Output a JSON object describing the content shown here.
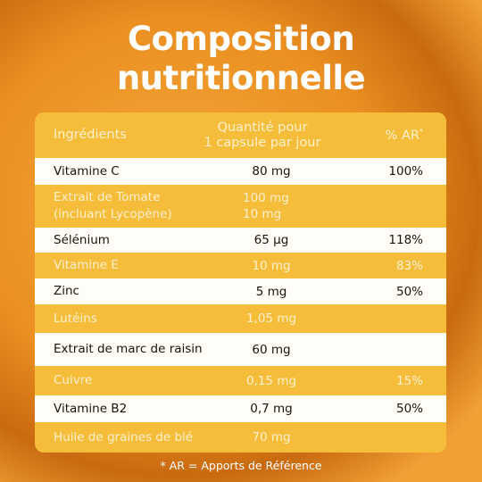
{
  "title": [
    "Composition",
    "nutritionnelle"
  ],
  "table": {
    "header": {
      "name": "Ingrédients",
      "qty": [
        "Quantité pour",
        "1 capsule par jour"
      ],
      "ar": "% AR",
      "ar_mark": "*"
    },
    "rows": [
      {
        "name": "Vitamine C",
        "qty": "80 mg",
        "ar": "100%"
      },
      {
        "name": [
          "Extrait de Tomate",
          "(incluant Lycopène)"
        ],
        "qty": [
          "100 mg",
          "10 mg"
        ]
      },
      {
        "name": "Sélénium",
        "qty": "65 µg",
        "ar": "118%"
      },
      {
        "name": "Vitamine E",
        "qty": "10 mg",
        "ar": "83%"
      },
      {
        "name": "Zinc",
        "qty": "5 mg",
        "ar": "50%"
      },
      {
        "name": "Lutéins",
        "qty": "1,05 mg"
      },
      {
        "name": "Extrait de marc de raisin",
        "qty": "60 mg"
      },
      {
        "name": "Cuivre",
        "qty": "0,15 mg",
        "ar": "15%"
      },
      {
        "name": "Vitamine B2",
        "qty": "0,7 mg",
        "ar": "50%"
      },
      {
        "name": "Huile de graines de blé",
        "qty": "70 mg"
      }
    ]
  },
  "footnote": "* AR = Apports de Référence"
}
